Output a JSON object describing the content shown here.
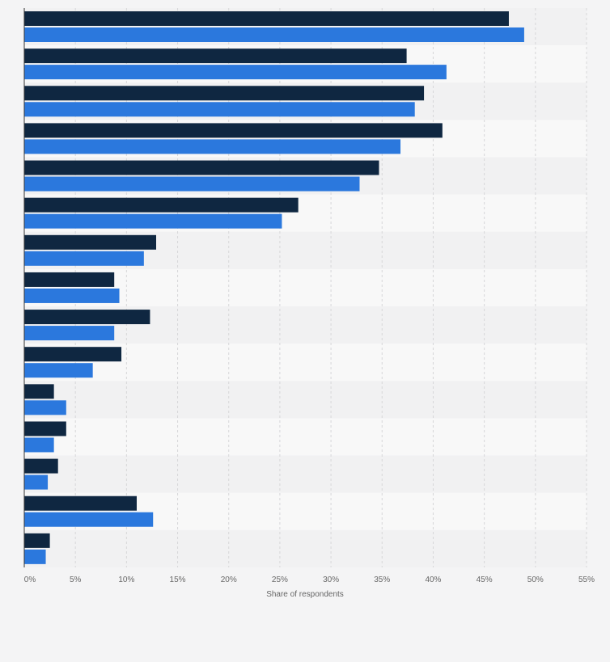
{
  "chart_data": {
    "type": "bar",
    "orientation": "horizontal",
    "categories": [
      "",
      "",
      "",
      "",
      "",
      "",
      "",
      "",
      "",
      "",
      "",
      "",
      "",
      "",
      ""
    ],
    "series": [
      {
        "color": "#0f2741",
        "values": [
          47.4,
          37.4,
          39.1,
          40.9,
          34.7,
          26.8,
          12.9,
          8.8,
          12.3,
          9.5,
          2.9,
          4.1,
          3.3,
          11.0,
          2.5
        ]
      },
      {
        "color": "#2b78dd",
        "values": [
          48.9,
          41.3,
          38.2,
          36.8,
          32.8,
          25.2,
          11.7,
          9.3,
          8.8,
          6.7,
          4.1,
          2.9,
          2.3,
          12.6,
          2.1
        ]
      }
    ],
    "xlabel": "Share of respondents",
    "ylabel": "",
    "xlim": [
      0,
      55
    ],
    "xticks": [
      0,
      5,
      10,
      15,
      20,
      25,
      30,
      35,
      40,
      45,
      50,
      55
    ],
    "tick_suffix": "%",
    "grid": true,
    "legend": "none"
  },
  "colors": {
    "background": "#f4f4f5",
    "band_light": "#f8f8f8",
    "band_dark": "#f1f1f2",
    "gridline": "#d7d7d9",
    "axis": "#333333"
  }
}
